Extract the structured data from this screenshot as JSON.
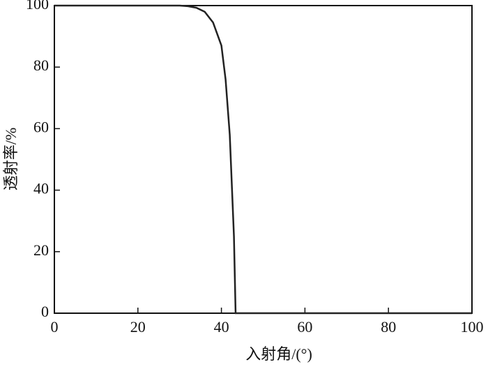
{
  "chart_data": {
    "type": "line",
    "xlabel": "入射角/(°)",
    "ylabel": "透射率/%",
    "x": [
      0,
      30,
      32,
      34,
      36,
      38,
      40,
      41,
      42,
      43,
      43.4,
      100
    ],
    "values": [
      100,
      100,
      99.8,
      99.3,
      98,
      94.5,
      87,
      76,
      58,
      25,
      0,
      0
    ],
    "color": "#222222",
    "xlim": [
      0,
      100
    ],
    "ylim": [
      0,
      100
    ],
    "xticks": [
      0,
      20,
      40,
      60,
      80,
      100
    ],
    "yticks": [
      0,
      20,
      40,
      60,
      80,
      100
    ]
  }
}
